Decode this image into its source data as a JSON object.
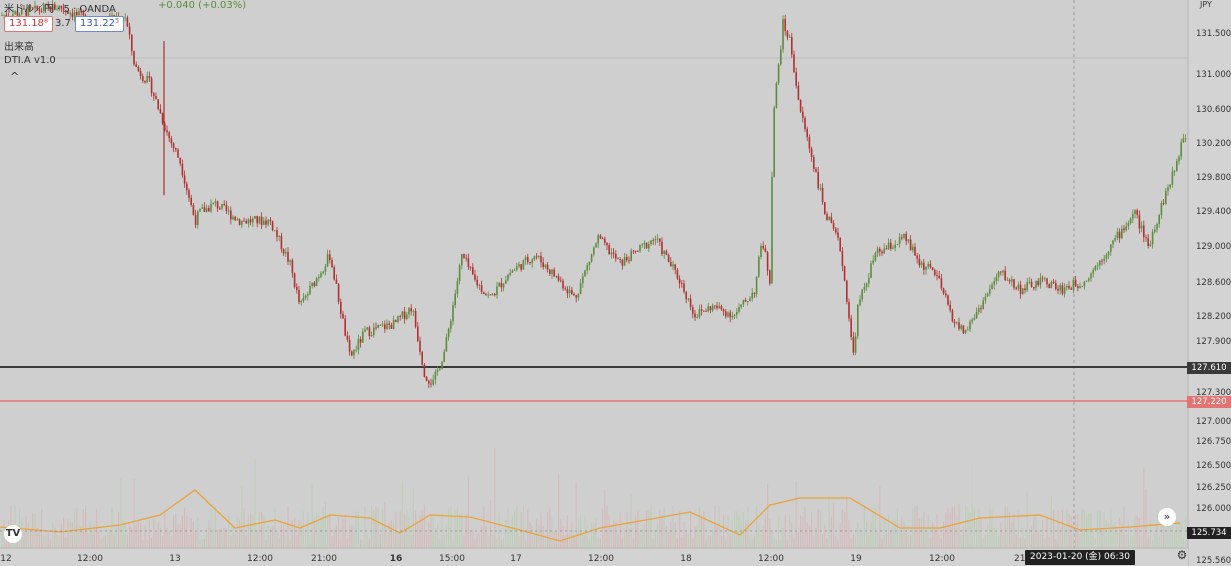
{
  "header": {
    "symbol": "米ドル／円 · 5 · OANDA",
    "change": "+0.040 (+0.03%)",
    "sell_price": "131.18⁸",
    "spread": "3.7",
    "buy_price": "131.22⁵",
    "volume_label": "出来高",
    "indicator_label": "DTI.A v1.0",
    "collapse_glyph": "^",
    "price_axis_top_label": "JPY"
  },
  "colors": {
    "background": "#cfcfcf",
    "up": "#5a8c3c",
    "down": "#b0302f",
    "ma": "#e8a33a",
    "support_line": "#3a3a3a",
    "resistance_line": "#e57373"
  },
  "chart_data": {
    "type": "candlestick",
    "y_axis": {
      "range": [
        125.55,
        131.8
      ],
      "ticks": [
        "131.500",
        "131.000",
        "130.600",
        "130.200",
        "129.800",
        "129.400",
        "129.000",
        "128.600",
        "128.200",
        "127.900",
        "127.300",
        "127.000",
        "126.750",
        "126.500",
        "126.250",
        "126.000",
        "125.560"
      ]
    },
    "x_axis": {
      "ticks": [
        "12",
        "12:00",
        "13",
        "12:00",
        "21:00",
        "16",
        "15:00",
        "17",
        "12:00",
        "18",
        "12:00",
        "19",
        "12:00",
        "21:00"
      ],
      "crosshair_label": "2023-01-20 (金)  06:30"
    },
    "price_lines": [
      {
        "label": "127.610",
        "value": 127.61,
        "color": "#3a3a3a"
      },
      {
        "label": "127.220",
        "value": 127.22,
        "color": "#e57373"
      }
    ],
    "volume_value_label": "125.734",
    "path_keypoints": [
      [
        0,
        131.6
      ],
      [
        60,
        131.7
      ],
      [
        95,
        131.5
      ],
      [
        125,
        131.6
      ],
      [
        135,
        131.0
      ],
      [
        150,
        130.8
      ],
      [
        168,
        130.2
      ],
      [
        180,
        129.9
      ],
      [
        195,
        129.2
      ],
      [
        200,
        129.3
      ],
      [
        215,
        129.4
      ],
      [
        240,
        129.2
      ],
      [
        270,
        129.2
      ],
      [
        290,
        128.7
      ],
      [
        300,
        128.2
      ],
      [
        320,
        128.6
      ],
      [
        330,
        128.8
      ],
      [
        350,
        127.6
      ],
      [
        365,
        127.9
      ],
      [
        395,
        128.0
      ],
      [
        412,
        128.2
      ],
      [
        425,
        127.4
      ],
      [
        433,
        127.3
      ],
      [
        445,
        127.7
      ],
      [
        462,
        128.8
      ],
      [
        475,
        128.5
      ],
      [
        490,
        128.3
      ],
      [
        510,
        128.6
      ],
      [
        535,
        128.8
      ],
      [
        560,
        128.5
      ],
      [
        575,
        128.3
      ],
      [
        598,
        129.0
      ],
      [
        620,
        128.7
      ],
      [
        655,
        129.0
      ],
      [
        680,
        128.5
      ],
      [
        695,
        128.1
      ],
      [
        712,
        128.2
      ],
      [
        735,
        128.1
      ],
      [
        755,
        128.4
      ],
      [
        762,
        129.0
      ],
      [
        770,
        128.5
      ],
      [
        773,
        130.4
      ],
      [
        783,
        131.5
      ],
      [
        790,
        131.3
      ],
      [
        800,
        130.5
      ],
      [
        815,
        129.8
      ],
      [
        825,
        129.3
      ],
      [
        840,
        128.9
      ],
      [
        848,
        128.2
      ],
      [
        853,
        127.6
      ],
      [
        858,
        128.2
      ],
      [
        875,
        128.8
      ],
      [
        905,
        129.0
      ],
      [
        920,
        128.7
      ],
      [
        935,
        128.6
      ],
      [
        955,
        128.0
      ],
      [
        965,
        127.9
      ],
      [
        980,
        128.2
      ],
      [
        1000,
        128.6
      ],
      [
        1020,
        128.4
      ],
      [
        1045,
        128.5
      ],
      [
        1060,
        128.4
      ],
      [
        1085,
        128.5
      ],
      [
        1110,
        128.9
      ],
      [
        1135,
        129.3
      ],
      [
        1148,
        128.9
      ],
      [
        1165,
        129.5
      ],
      [
        1175,
        129.8
      ],
      [
        1183,
        130.2
      ]
    ]
  }
}
